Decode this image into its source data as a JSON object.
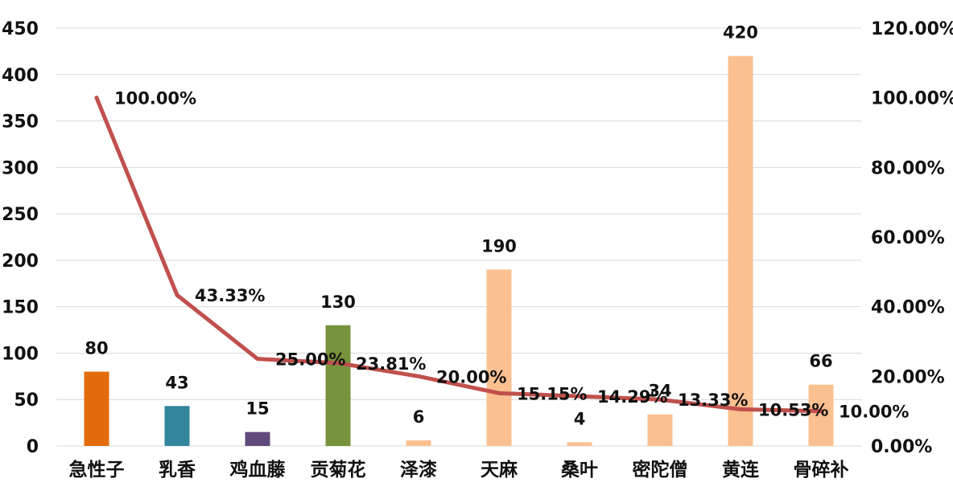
{
  "chart_data": {
    "type": "bar",
    "categories": [
      "急性子",
      "乳香",
      "鸡血藤",
      "贡菊花",
      "泽漆",
      "天麻",
      "桑叶",
      "密陀僧",
      "黄连",
      "骨碎补"
    ],
    "series": [
      {
        "type": "bar",
        "values": [
          80,
          43,
          15,
          130,
          6,
          190,
          4,
          34,
          420,
          66
        ],
        "colors": [
          "#e36c0a",
          "#31859c",
          "#604a7b",
          "#77933c",
          "#fac090",
          "#fac090",
          "#fac090",
          "#fac090",
          "#fac090",
          "#fac090"
        ],
        "labels": [
          "80",
          "43",
          "15",
          "130",
          "6",
          "190",
          "4",
          "34",
          "420",
          "66"
        ]
      },
      {
        "type": "line",
        "axis": "right",
        "values": [
          100.0,
          43.33,
          25.0,
          23.81,
          20.0,
          15.15,
          14.29,
          13.33,
          10.53,
          10.0
        ],
        "color": "#c0504d",
        "labels": [
          "100.00%",
          "43.33%",
          "25.00%",
          "23.81%",
          "20.00%",
          "15.15%",
          "14.29%",
          "13.33%",
          "10.53%",
          "10.00%"
        ]
      }
    ],
    "ylim": [
      0,
      450
    ],
    "y_ticks": [
      "0",
      "50",
      "100",
      "150",
      "200",
      "250",
      "300",
      "350",
      "400",
      "450"
    ],
    "y2lim": [
      0,
      120
    ],
    "y2_ticks": [
      "0.00%",
      "20.00%",
      "40.00%",
      "60.00%",
      "80.00%",
      "100.00%",
      "120.00%"
    ],
    "grid": true,
    "title": "",
    "xlabel": "",
    "ylabel": ""
  }
}
